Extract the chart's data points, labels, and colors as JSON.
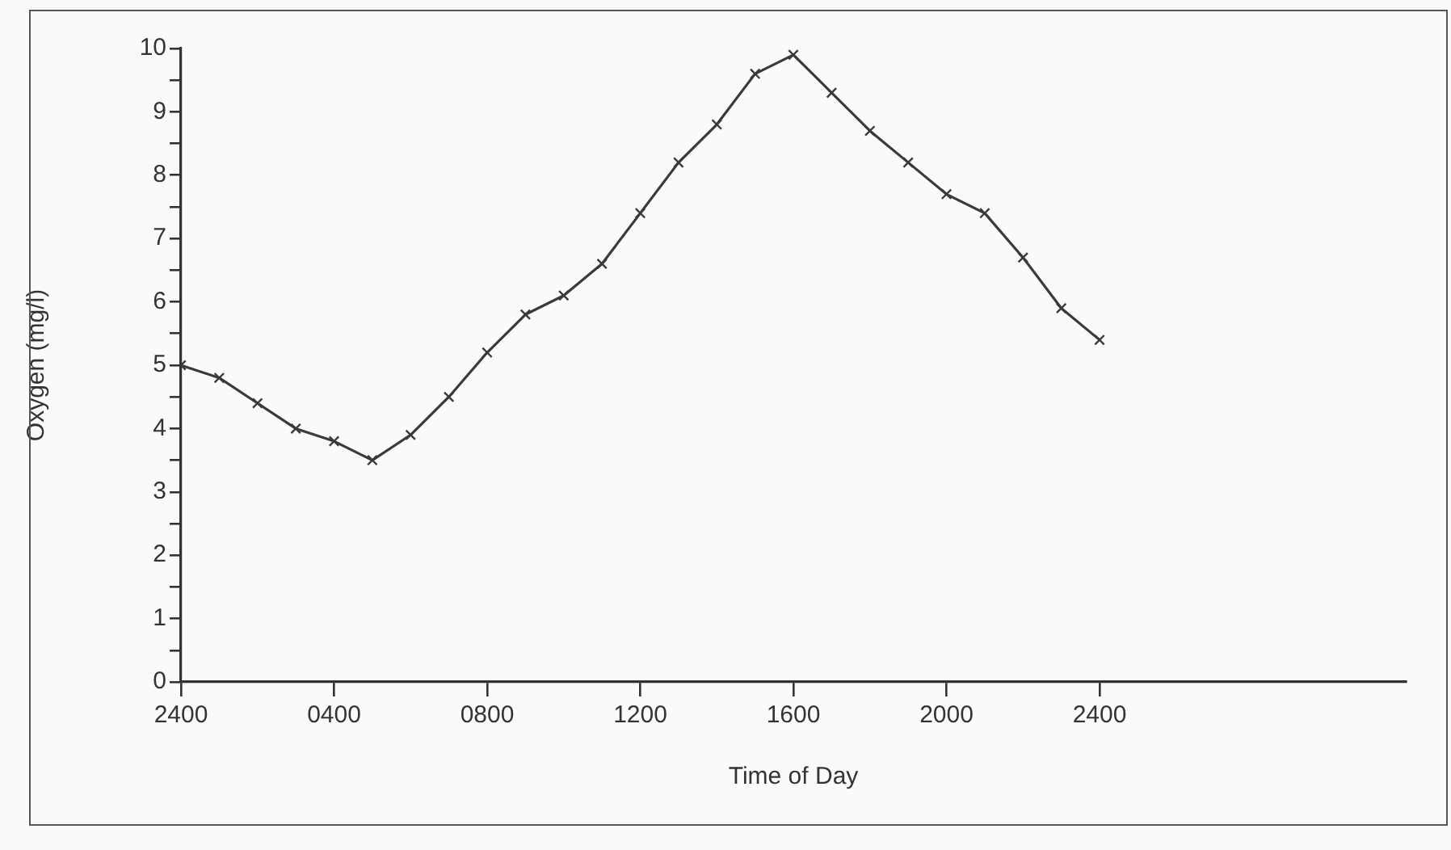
{
  "chart_data": {
    "type": "line",
    "xlabel": "Time of Day",
    "ylabel": "Oxygen (mg/l)",
    "categories": [
      "2400",
      null,
      null,
      null,
      "0400",
      null,
      null,
      null,
      "0800",
      null,
      null,
      null,
      "1200",
      null,
      null,
      null,
      "1600",
      null,
      null,
      null,
      "2000",
      null,
      null,
      null,
      "2400",
      null,
      null,
      null,
      null,
      null,
      null,
      null,
      null
    ],
    "values": [
      5.0,
      4.8,
      4.4,
      4.0,
      3.8,
      3.5,
      3.9,
      4.5,
      5.2,
      5.8,
      6.1,
      6.6,
      7.4,
      8.2,
      8.8,
      9.6,
      9.9,
      9.3,
      8.7,
      8.2,
      7.7,
      7.4,
      6.7,
      5.9,
      5.4,
      null,
      null,
      null,
      null,
      null,
      null,
      null,
      null
    ],
    "color": "#3a3a3a",
    "marker": "cross",
    "line_style": "solid",
    "grid": false,
    "legend": false,
    "ylim": [
      0,
      10
    ],
    "yticks": [
      0,
      {
        "value": 0.5,
        "label": null
      },
      1,
      {
        "value": 1.5,
        "label": null
      },
      2,
      {
        "value": 2.5,
        "label": null
      },
      3,
      {
        "value": 3.5,
        "label": null
      },
      4,
      {
        "value": 4.5,
        "label": null
      },
      5,
      {
        "value": 5.5,
        "label": null
      },
      6,
      {
        "value": 6.5,
        "label": null
      },
      7,
      {
        "value": 7.5,
        "label": null
      },
      8,
      {
        "value": 8.5,
        "label": null
      },
      9,
      {
        "value": 9.5,
        "label": null
      },
      10
    ]
  }
}
